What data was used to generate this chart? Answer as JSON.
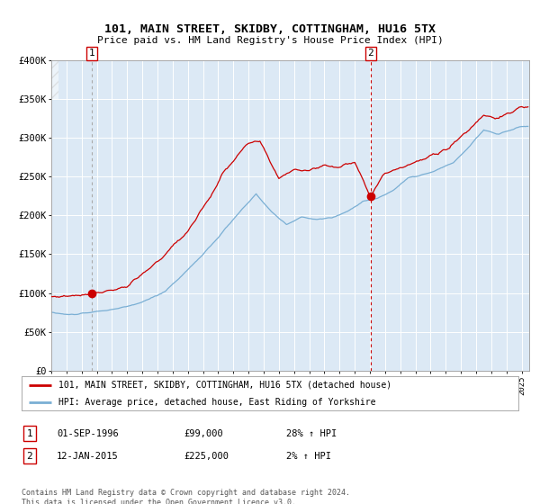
{
  "title": "101, MAIN STREET, SKIDBY, COTTINGHAM, HU16 5TX",
  "subtitle": "Price paid vs. HM Land Registry's House Price Index (HPI)",
  "red_label": "101, MAIN STREET, SKIDBY, COTTINGHAM, HU16 5TX (detached house)",
  "blue_label": "HPI: Average price, detached house, East Riding of Yorkshire",
  "annotation1_date": "01-SEP-1996",
  "annotation1_price": "£99,000",
  "annotation1_hpi": "28% ↑ HPI",
  "annotation2_date": "12-JAN-2015",
  "annotation2_price": "£225,000",
  "annotation2_hpi": "2% ↑ HPI",
  "sale1_year": 1996.67,
  "sale1_value": 99000,
  "sale2_year": 2015.04,
  "sale2_value": 225000,
  "ylim_max": 400000,
  "ylim_min": 0,
  "xlim_min": 1994.0,
  "xlim_max": 2025.5,
  "bg_color": "#dce9f5",
  "grid_color": "#ffffff",
  "red_line_color": "#cc0000",
  "blue_line_color": "#7aafd4",
  "dot_color": "#cc0000",
  "footer_text": "Contains HM Land Registry data © Crown copyright and database right 2024.\nThis data is licensed under the Open Government Licence v3.0.",
  "hpi_anchors_y": [
    1994.0,
    1995.0,
    1996.0,
    1997.0,
    1998.5,
    2000.0,
    2001.5,
    2003.0,
    2004.5,
    2006.0,
    2007.5,
    2008.5,
    2009.5,
    2010.5,
    2011.5,
    2012.5,
    2013.5,
    2014.5,
    2015.5,
    2016.5,
    2017.5,
    2019.0,
    2020.5,
    2021.5,
    2022.5,
    2023.5,
    2025.0
  ],
  "hpi_anchors_v": [
    75000,
    72000,
    73000,
    76000,
    80000,
    88000,
    102000,
    130000,
    160000,
    195000,
    228000,
    205000,
    188000,
    198000,
    195000,
    197000,
    205000,
    218000,
    222000,
    232000,
    248000,
    255000,
    268000,
    288000,
    310000,
    305000,
    315000
  ],
  "red_anchors_y": [
    1994.0,
    1995.0,
    1996.0,
    1996.67,
    1997.5,
    1999.0,
    2001.0,
    2003.0,
    2004.5,
    2005.5,
    2007.0,
    2007.75,
    2009.0,
    2010.0,
    2011.0,
    2012.0,
    2013.0,
    2014.0,
    2015.04,
    2016.0,
    2017.0,
    2018.5,
    2020.0,
    2021.5,
    2022.5,
    2023.5,
    2024.5,
    2025.0
  ],
  "red_anchors_v": [
    95000,
    96000,
    98000,
    99000,
    102000,
    108000,
    140000,
    180000,
    225000,
    260000,
    293000,
    295000,
    248000,
    260000,
    258000,
    265000,
    262000,
    270000,
    225000,
    255000,
    262000,
    272000,
    285000,
    310000,
    330000,
    325000,
    335000,
    340000
  ]
}
